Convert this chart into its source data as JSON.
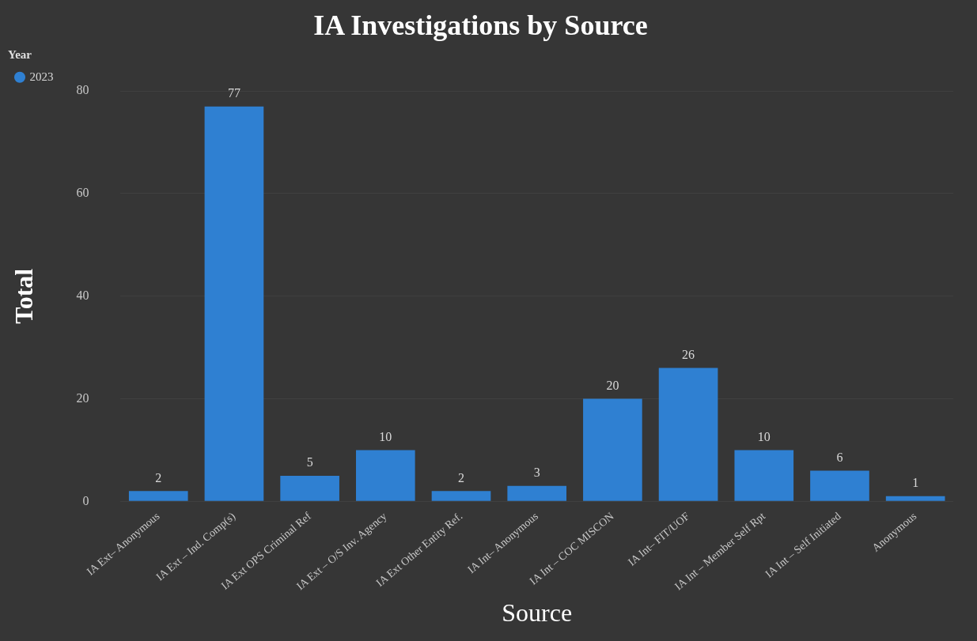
{
  "chart_data": {
    "type": "bar",
    "title": "IA Investigations by Source",
    "xlabel": "Source",
    "ylabel": "Total",
    "legend_title": "Year",
    "categories": [
      "IA Ext– Anonymous",
      "IA Ext – Ind. Comp(s)",
      "IA Ext OPS Criminal Ref",
      "IA Ext – O/S Inv. Agency",
      "IA Ext Other Entity Ref.",
      "IA Int– Anonymous",
      "IA Int – COC MISCON",
      "IA Int– FIT/UOF",
      "IA Int – Member Self Rpt",
      "IA Int – Self Initiated",
      "Anonymous"
    ],
    "series": [
      {
        "name": "2023",
        "color": "#2f80d2",
        "values": [
          2,
          77,
          5,
          10,
          2,
          3,
          20,
          26,
          10,
          6,
          1
        ]
      }
    ],
    "ylim": [
      0,
      80
    ],
    "yticks": [
      0,
      20,
      40,
      60,
      80
    ],
    "grid": "y",
    "legend": "top left",
    "marker": "circle",
    "data_labels": true
  }
}
